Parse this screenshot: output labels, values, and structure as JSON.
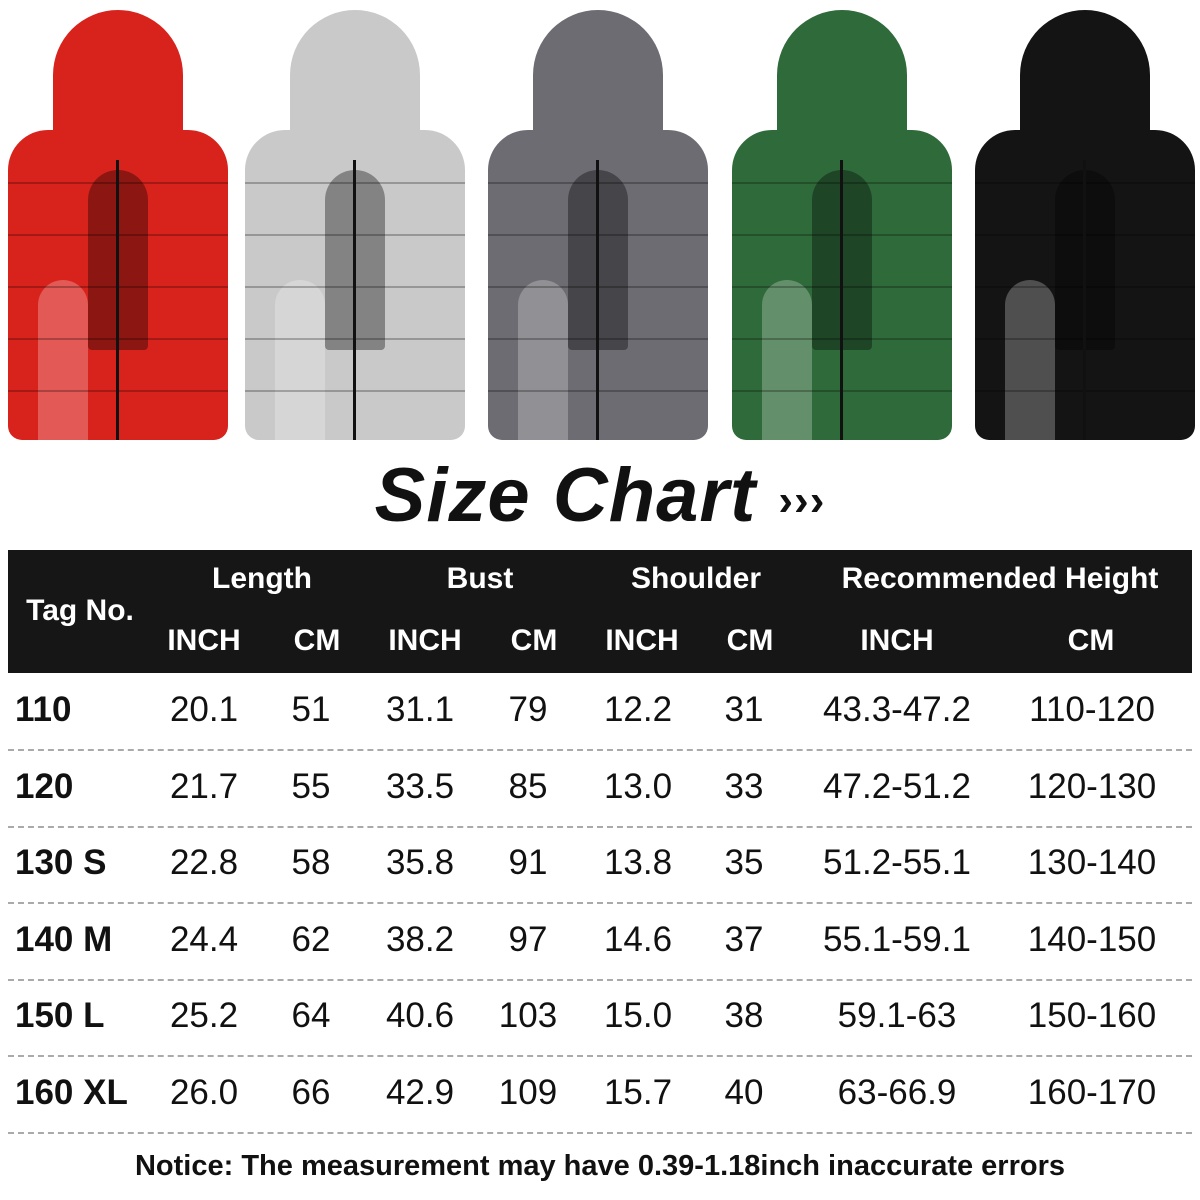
{
  "products": [
    {
      "color_name": "red",
      "color": "#d8221c"
    },
    {
      "color_name": "silver",
      "color": "#c9c9c9"
    },
    {
      "color_name": "gray",
      "color": "#6c6c72"
    },
    {
      "color_name": "green",
      "color": "#2f6a3a"
    },
    {
      "color_name": "black",
      "color": "#141414"
    }
  ],
  "title": "Size Chart",
  "title_arrows": "›››",
  "table": {
    "tag_header": "Tag No.",
    "groups": [
      "Length",
      "Bust",
      "Shoulder",
      "Recommended Height"
    ],
    "units": [
      "INCH",
      "CM",
      "INCH",
      "CM",
      "INCH",
      "CM",
      "INCH",
      "CM"
    ],
    "rows": [
      {
        "tag": "110",
        "values": [
          "20.1",
          "51",
          "31.1",
          "79",
          "12.2",
          "31",
          "43.3-47.2",
          "110-120"
        ]
      },
      {
        "tag": "120",
        "values": [
          "21.7",
          "55",
          "33.5",
          "85",
          "13.0",
          "33",
          "47.2-51.2",
          "120-130"
        ]
      },
      {
        "tag": "130 S",
        "values": [
          "22.8",
          "58",
          "35.8",
          "91",
          "13.8",
          "35",
          "51.2-55.1",
          "130-140"
        ]
      },
      {
        "tag": "140 M",
        "values": [
          "24.4",
          "62",
          "38.2",
          "97",
          "14.6",
          "37",
          "55.1-59.1",
          "140-150"
        ]
      },
      {
        "tag": "150 L",
        "values": [
          "25.2",
          "64",
          "40.6",
          "103",
          "15.0",
          "38",
          "59.1-63",
          "150-160"
        ]
      },
      {
        "tag": "160 XL",
        "values": [
          "26.0",
          "66",
          "42.9",
          "109",
          "15.7",
          "40",
          "63-66.9",
          "160-170"
        ]
      }
    ]
  },
  "notice": "Notice: The measurement may have 0.39-1.18inch inaccurate errors"
}
